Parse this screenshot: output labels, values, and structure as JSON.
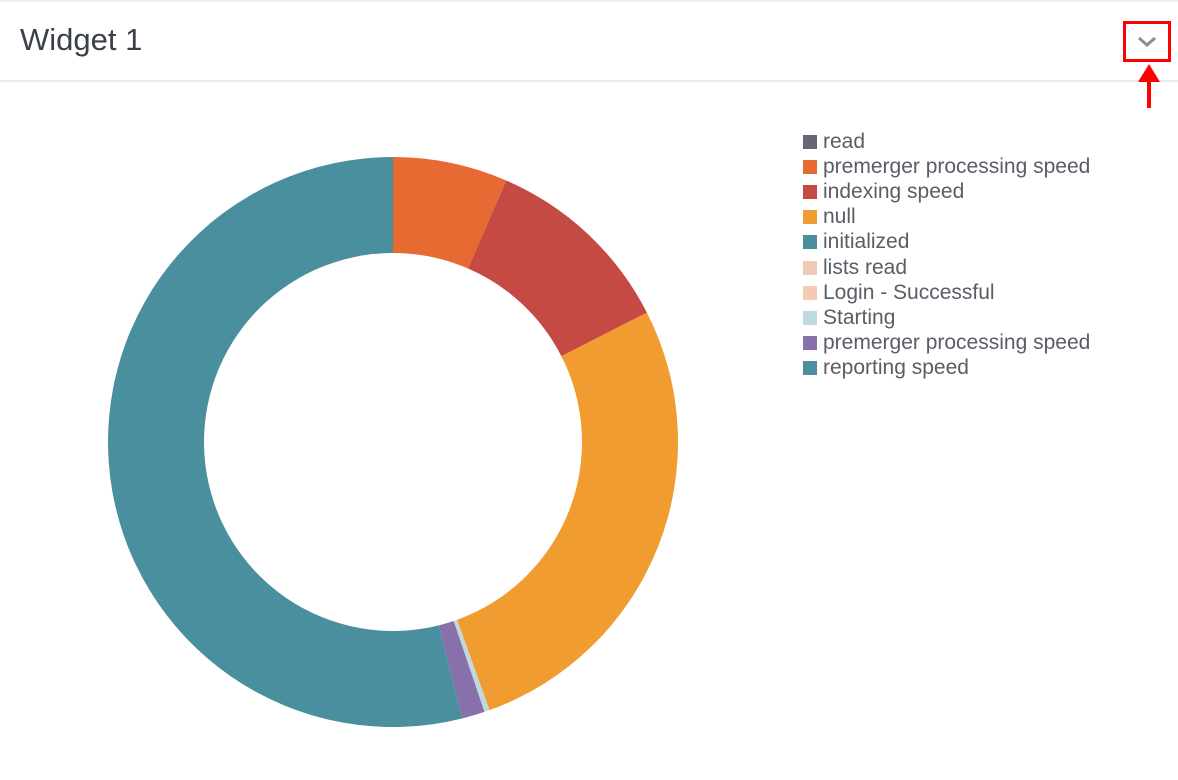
{
  "widget": {
    "title": "Widget 1",
    "toggle_icon": "chevron-down-icon"
  },
  "annotation": {
    "color": "#ff0000",
    "icon": "arrow-up-icon"
  },
  "chart_data": {
    "type": "pie",
    "donut": true,
    "legend_placement": "right",
    "categories": [
      "read",
      "premerger processing speed",
      "indexing speed",
      "null",
      "initialized",
      "lists read",
      "Login - Successful",
      "Starting",
      "premerger processing speed",
      "reporting speed"
    ],
    "values": [
      0,
      6.5,
      11,
      27,
      0,
      0,
      0,
      0.3,
      1.3,
      53.9
    ],
    "colors": [
      "#6b6377",
      "#e86a33",
      "#c54a44",
      "#f09c30",
      "#4b8f9c",
      "#efcab8",
      "#f3cbb5",
      "#bfd9e0",
      "#8870aa",
      "#4a8f9d"
    ]
  }
}
